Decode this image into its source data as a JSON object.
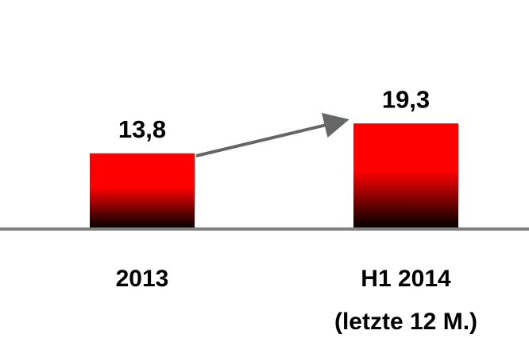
{
  "chart_data": {
    "type": "bar",
    "categories": [
      [
        "2013"
      ],
      [
        "H1 2014",
        "(letzte 12 M.)"
      ]
    ],
    "values": [
      13.8,
      19.3
    ],
    "value_labels": [
      "13,8",
      "19,3"
    ],
    "color": "#ff0000"
  }
}
